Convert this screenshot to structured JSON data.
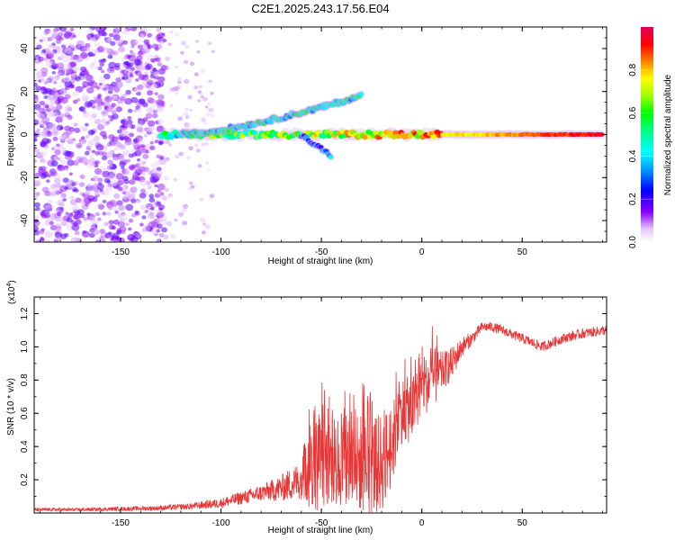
{
  "title": "C2E1.2025.243.17.56.E04",
  "chart_data": [
    {
      "type": "heatmap",
      "name": "spectrogram",
      "xlabel": "Height of straight line (km)",
      "ylabel": "Frequency (Hz)",
      "xlim": [
        -193,
        92
      ],
      "ylim": [
        -50,
        50
      ],
      "x_ticks": [
        -150,
        -100,
        -50,
        0,
        50
      ],
      "y_ticks": [
        -40,
        -20,
        0,
        20,
        40
      ],
      "colorbar": {
        "label": "Normalized spectral amplitude",
        "range": [
          0,
          1
        ],
        "ticks": [
          "0.0",
          "0.2",
          "0.4",
          "0.6",
          "0.8"
        ],
        "tick_values": [
          0,
          0.2,
          0.4,
          0.6,
          0.8
        ]
      },
      "features": [
        {
          "name": "noise-region",
          "x_range": [
            -193,
            -128
          ],
          "y_range": [
            -50,
            50
          ],
          "amplitude": 0.2
        },
        {
          "name": "carrier-line",
          "x_range": [
            -130,
            90
          ],
          "y_center": 0,
          "amplitude_start": 0.4,
          "amplitude_end": 0.95
        },
        {
          "name": "upper-branch",
          "x_range": [
            -120,
            -30
          ],
          "y_start": 0,
          "y_end": 18,
          "amplitude": 0.45
        },
        {
          "name": "lower-branch",
          "x_range": [
            -60,
            -45
          ],
          "y_start": 0,
          "y_end": -10,
          "amplitude": 0.3
        }
      ]
    },
    {
      "type": "line",
      "name": "snr",
      "xlabel": "Height of straight line (km)",
      "ylabel": "SNR (10 * v/v)",
      "y_scale_label": "(x10",
      "y_scale_exponent": "4",
      "xlim": [
        -193,
        92
      ],
      "ylim": [
        0,
        1.3
      ],
      "x_ticks": [
        -150,
        -100,
        -50,
        0,
        50
      ],
      "y_ticks": [
        "0.2",
        "0.4",
        "0.6",
        "0.8",
        "1.0",
        "1.2"
      ],
      "y_tick_values": [
        0.2,
        0.4,
        0.6,
        0.8,
        1.0,
        1.2
      ],
      "series": [
        {
          "name": "SNR",
          "color": "#e83535",
          "x": [
            -193,
            -170,
            -150,
            -130,
            -115,
            -100,
            -90,
            -80,
            -70,
            -60,
            -55,
            -50,
            -45,
            -40,
            -35,
            -30,
            -25,
            -20,
            -15,
            -10,
            -5,
            0,
            5,
            10,
            15,
            20,
            25,
            30,
            35,
            40,
            50,
            60,
            70,
            80,
            92
          ],
          "mean": [
            0.02,
            0.02,
            0.025,
            0.03,
            0.04,
            0.06,
            0.09,
            0.12,
            0.15,
            0.2,
            0.28,
            0.3,
            0.3,
            0.3,
            0.3,
            0.3,
            0.28,
            0.3,
            0.4,
            0.62,
            0.62,
            0.75,
            0.8,
            0.85,
            0.9,
            1.0,
            1.05,
            1.12,
            1.12,
            1.1,
            1.05,
            1.0,
            1.05,
            1.08,
            1.1
          ],
          "spread": [
            0.01,
            0.01,
            0.012,
            0.015,
            0.02,
            0.03,
            0.04,
            0.05,
            0.08,
            0.12,
            0.28,
            0.3,
            0.25,
            0.28,
            0.3,
            0.3,
            0.3,
            0.3,
            0.25,
            0.2,
            0.2,
            0.15,
            0.2,
            0.12,
            0.1,
            0.06,
            0.04,
            0.03,
            0.03,
            0.03,
            0.03,
            0.03,
            0.03,
            0.03,
            0.03
          ]
        }
      ]
    }
  ]
}
